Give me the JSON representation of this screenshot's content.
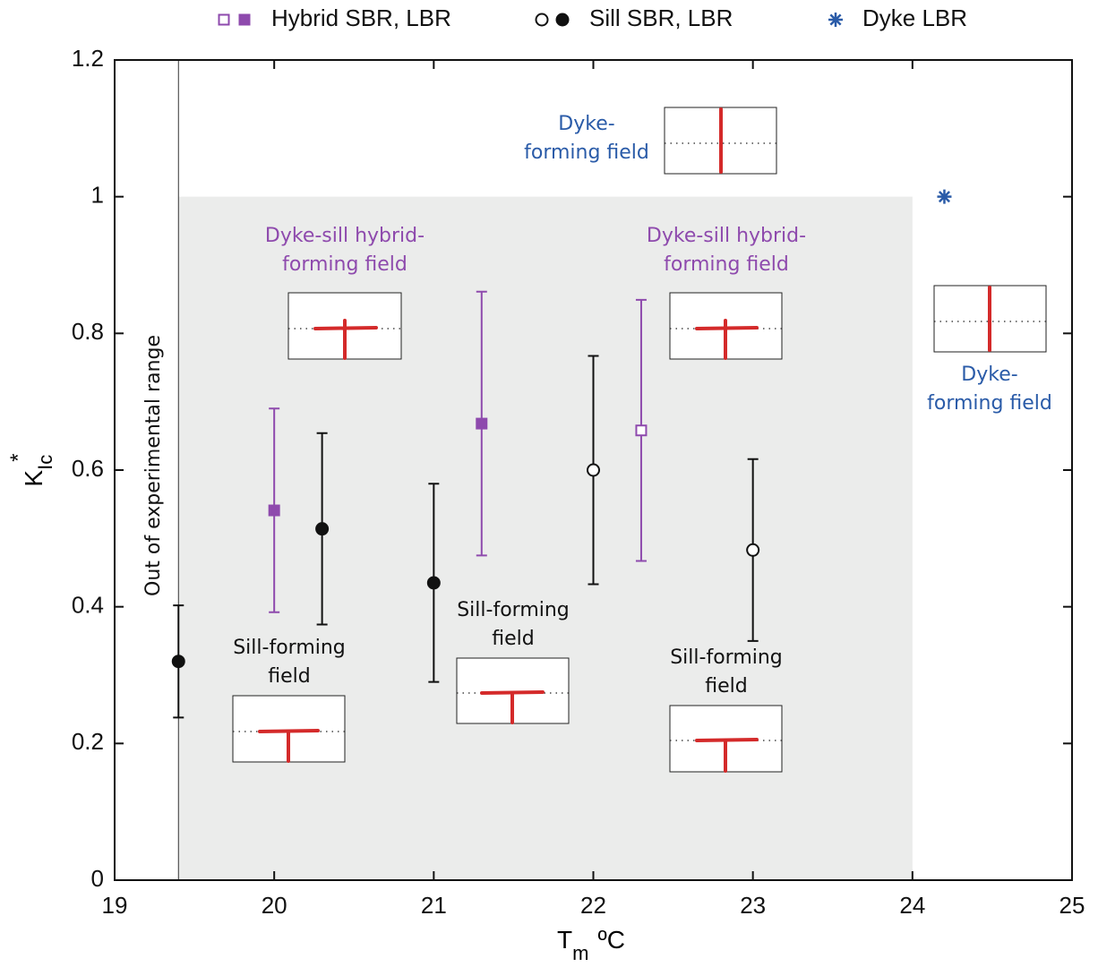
{
  "chart_data": {
    "type": "scatter",
    "xlabel": {
      "text": "T",
      "sub": "m",
      "after": "ºC"
    },
    "ylabel": {
      "text": "K",
      "sub": "Ic",
      "sup": "*"
    },
    "xlim": [
      19,
      25
    ],
    "ylim": [
      0,
      1.2
    ],
    "xticks": [
      19,
      20,
      21,
      22,
      23,
      24,
      25
    ],
    "yticks": [
      0,
      0.2,
      0.4,
      0.6,
      0.8,
      1,
      1.2
    ],
    "shaded_region": {
      "xlim": [
        19.4,
        24
      ],
      "ylim": [
        0,
        1
      ],
      "color": "#ebeceb"
    },
    "vline": 19.4,
    "series": [
      {
        "name": "Hybrid SBR, LBR",
        "color": "#8e4aad",
        "marker": "square",
        "x": [
          20.0,
          21.3,
          22.3
        ],
        "values": [
          0.541,
          0.668,
          0.658
        ],
        "errors": [
          0.149,
          0.193,
          0.191
        ],
        "filled": [
          true,
          true,
          false
        ]
      },
      {
        "name": "Sill SBR, LBR",
        "color": "#111111",
        "marker": "circle",
        "x": [
          19.4,
          20.3,
          21.0,
          22.0,
          23.0
        ],
        "values": [
          0.32,
          0.514,
          0.435,
          0.6,
          0.483
        ],
        "errors": [
          0.082,
          0.14,
          0.145,
          0.167,
          0.133
        ],
        "filled": [
          true,
          true,
          true,
          false,
          false
        ]
      },
      {
        "name": "Dyke LBR",
        "color": "#2a5ba8",
        "marker": "star",
        "x": [
          24.2
        ],
        "values": [
          1.0
        ],
        "errors": [
          null
        ],
        "filled": [
          true
        ]
      }
    ],
    "annotations": [
      {
        "lines": [
          "Dyke-",
          "forming field"
        ],
        "color": "#2a5ba8"
      },
      {
        "lines": [
          "Dyke-sill hybrid-",
          "forming field"
        ],
        "color": "#8e4aad"
      },
      {
        "lines": [
          "Dyke-sill hybrid-",
          "forming field"
        ],
        "color": "#8e4aad"
      },
      {
        "lines": [
          "Dyke-",
          "forming field"
        ],
        "color": "#2a5ba8"
      },
      {
        "lines": [
          "Sill-forming",
          "field"
        ],
        "color": "#111111"
      },
      {
        "lines": [
          "Sill-forming",
          "field"
        ],
        "color": "#111111"
      },
      {
        "lines": [
          "Sill-forming",
          "field"
        ],
        "color": "#111111"
      },
      {
        "lines": [
          "Out of experimental range"
        ],
        "color": "#111111"
      }
    ]
  }
}
